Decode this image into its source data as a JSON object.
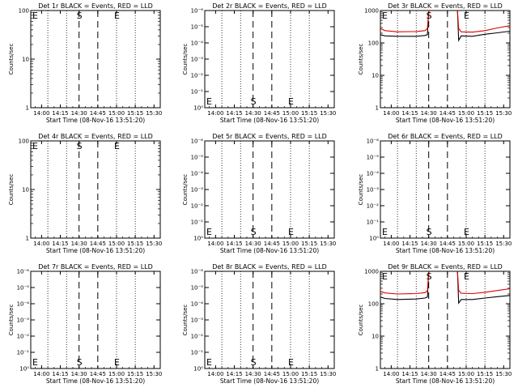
{
  "figure": {
    "colors": {
      "events": "#000000",
      "lld": "#dd0000",
      "background": "#ffffff"
    },
    "panels": [
      {
        "title": "Det 1r BLACK = Events, RED = LLD",
        "xlabel": "Start Time (08-Nov-16 13:51:20)",
        "ylabel": "Counts/sec",
        "xticks": [
          "14:00",
          "14:15",
          "14:30",
          "14:45",
          "15:00",
          "15:15",
          "15:30"
        ],
        "yticks": [
          "1",
          "10",
          "100"
        ],
        "markers": [
          "E",
          "S",
          "E"
        ]
      },
      {
        "title": "Det 2r BLACK = Events, RED = LLD",
        "xlabel": "Start Time (08-Nov-16 13:51:20)",
        "ylabel": "Counts/sec",
        "xticks": [
          "14:00",
          "14:15",
          "14:30",
          "14:45",
          "15:00",
          "15:15",
          "15:30"
        ],
        "yticks": [
          "10⁰",
          "10⁻¹",
          "10⁻²",
          "10⁻³",
          "10⁻⁴",
          "10⁻⁵",
          "10⁻⁶"
        ],
        "markers": [
          "E",
          "S",
          "E"
        ]
      },
      {
        "title": "Det 3r BLACK = Events, RED = LLD",
        "xlabel": "Start Time (08-Nov-16 13:51:20)",
        "ylabel": "Counts/sec",
        "xticks": [
          "14:00",
          "14:15",
          "14:30",
          "14:45",
          "15:00",
          "15:15",
          "15:30"
        ],
        "yticks": [
          "1",
          "10",
          "100",
          "1000"
        ],
        "markers": [
          "E",
          "S",
          "E"
        ]
      },
      {
        "title": "Det 4r BLACK = Events, RED = LLD",
        "xlabel": "Start Time (08-Nov-16 13:51:20)",
        "ylabel": "Counts/sec",
        "xticks": [
          "14:00",
          "14:15",
          "14:30",
          "14:45",
          "15:00",
          "15:15",
          "15:30"
        ],
        "yticks": [
          "1",
          "10",
          "100"
        ],
        "markers": [
          "E",
          "S",
          "E"
        ]
      },
      {
        "title": "Det 5r BLACK = Events, RED = LLD",
        "xlabel": "Start Time (08-Nov-16 13:51:20)",
        "ylabel": "Counts/sec",
        "xticks": [
          "14:00",
          "14:15",
          "14:30",
          "14:45",
          "15:00",
          "15:15",
          "15:30"
        ],
        "yticks": [
          "10⁰",
          "10⁻¹",
          "10⁻²",
          "10⁻³",
          "10⁻⁴",
          "10⁻⁵",
          "10⁻⁶"
        ],
        "markers": [
          "E",
          "S",
          "E"
        ]
      },
      {
        "title": "Det 6r BLACK = Events, RED = LLD",
        "xlabel": "Start Time (08-Nov-16 13:51:20)",
        "ylabel": "Counts/sec",
        "xticks": [
          "14:00",
          "14:15",
          "14:30",
          "14:45",
          "15:00",
          "15:15",
          "15:30"
        ],
        "yticks": [
          "10⁰",
          "10⁻¹",
          "10⁻²",
          "10⁻³",
          "10⁻⁴",
          "10⁻⁵",
          "10⁻⁶"
        ],
        "markers": [
          "E",
          "S",
          "E"
        ]
      },
      {
        "title": "Det 7r BLACK = Events, RED = LLD",
        "xlabel": "Start Time (08-Nov-16 13:51:20)",
        "ylabel": "Counts/sec",
        "xticks": [
          "14:00",
          "14:15",
          "14:30",
          "14:45",
          "15:00",
          "15:15",
          "15:30"
        ],
        "yticks": [
          "10⁰",
          "10⁻¹",
          "10⁻²",
          "10⁻³",
          "10⁻⁴",
          "10⁻⁵",
          "10⁻⁶"
        ],
        "markers": [
          "E",
          "S",
          "E"
        ]
      },
      {
        "title": "Det 8r BLACK = Events, RED = LLD",
        "xlabel": "Start Time (08-Nov-16 13:51:20)",
        "ylabel": "Counts/sec",
        "xticks": [
          "14:00",
          "14:15",
          "14:30",
          "14:45",
          "15:00",
          "15:15",
          "15:30"
        ],
        "yticks": [
          "10⁰",
          "10⁻¹",
          "10⁻²",
          "10⁻³",
          "10⁻⁴",
          "10⁻⁵",
          "10⁻⁶"
        ],
        "markers": [
          "E",
          "S",
          "E"
        ]
      },
      {
        "title": "Det 9r BLACK = Events, RED = LLD",
        "xlabel": "Start Time (08-Nov-16 13:51:20)",
        "ylabel": "Counts/sec",
        "xticks": [
          "14:00",
          "14:15",
          "14:30",
          "14:45",
          "15:00",
          "15:15",
          "15:30"
        ],
        "yticks": [
          "1",
          "10",
          "100",
          "1000"
        ],
        "markers": [
          "E",
          "S",
          "E"
        ]
      }
    ]
  },
  "chart_data": [
    {
      "type": "line",
      "title": "Det 1r BLACK = Events, RED = LLD",
      "xlabel": "Start Time (08-Nov-16 13:51:20)",
      "ylabel": "Counts/sec",
      "yscale": "log",
      "xlim": [
        "13:51:20",
        "15:35"
      ],
      "ylim": [
        1,
        100
      ],
      "dotted_x": [
        "14:05",
        "14:20",
        "15:00",
        "15:15"
      ],
      "dashed_x": [
        "14:30",
        "14:45"
      ],
      "markers": [
        {
          "label": "E",
          "x": "13:52"
        },
        {
          "label": "S",
          "x": "14:30"
        },
        {
          "label": "E",
          "x": "15:00"
        }
      ],
      "series": []
    },
    {
      "type": "line",
      "title": "Det 2r BLACK = Events, RED = LLD",
      "xlabel": "Start Time (08-Nov-16 13:51:20)",
      "ylabel": "Counts/sec",
      "yscale": "log",
      "xlim": [
        "13:51:20",
        "15:35"
      ],
      "ylim": [
        1,
        1000000
      ],
      "dotted_x": [
        "14:05",
        "14:20",
        "15:00",
        "15:15"
      ],
      "dashed_x": [
        "14:30",
        "14:45"
      ],
      "markers": [
        {
          "label": "E",
          "x": "13:52"
        },
        {
          "label": "S",
          "x": "14:30"
        },
        {
          "label": "E",
          "x": "15:00"
        }
      ],
      "series": []
    },
    {
      "type": "line",
      "title": "Det 3r BLACK = Events, RED = LLD",
      "xlabel": "Start Time (08-Nov-16 13:51:20)",
      "ylabel": "Counts/sec",
      "yscale": "log",
      "xlim": [
        "13:51:20",
        "15:35"
      ],
      "ylim": [
        1,
        1000
      ],
      "dotted_x": [
        "14:05",
        "14:20",
        "15:00",
        "15:15"
      ],
      "dashed_x": [
        "14:30",
        "14:45"
      ],
      "markers": [
        {
          "label": "E",
          "x": "13:52"
        },
        {
          "label": "S",
          "x": "14:30"
        },
        {
          "label": "E",
          "x": "15:00"
        }
      ],
      "series": [
        {
          "color": "#000000",
          "segments": [
            [
              [
                "13:51:20",
                180
              ],
              [
                "13:55",
                165
              ],
              [
                "14:05",
                160
              ],
              [
                "14:20",
                160
              ],
              [
                "14:27",
                170
              ],
              [
                "14:29",
                180
              ],
              [
                "14:30",
                1000
              ]
            ],
            [
              [
                "14:53",
                1000
              ],
              [
                "14:54",
                120
              ],
              [
                "14:56",
                165
              ],
              [
                "15:05",
                160
              ],
              [
                "15:15",
                185
              ],
              [
                "15:25",
                205
              ],
              [
                "15:35",
                230
              ]
            ]
          ]
        },
        {
          "color": "#dd0000",
          "segments": [
            [
              [
                "13:51:20",
                280
              ],
              [
                "13:55",
                240
              ],
              [
                "14:05",
                220
              ],
              [
                "14:20",
                225
              ],
              [
                "14:27",
                240
              ],
              [
                "14:29",
                280
              ],
              [
                "14:30",
                1000
              ]
            ],
            [
              [
                "14:53",
                1000
              ],
              [
                "14:54",
                280
              ],
              [
                "14:56",
                220
              ],
              [
                "15:05",
                215
              ],
              [
                "15:15",
                240
              ],
              [
                "15:25",
                290
              ],
              [
                "15:35",
                340
              ]
            ]
          ]
        }
      ]
    },
    {
      "type": "line",
      "title": "Det 4r BLACK = Events, RED = LLD",
      "xlabel": "Start Time (08-Nov-16 13:51:20)",
      "ylabel": "Counts/sec",
      "yscale": "log",
      "xlim": [
        "13:51:20",
        "15:35"
      ],
      "ylim": [
        1,
        100
      ],
      "dotted_x": [
        "14:05",
        "14:20",
        "15:00",
        "15:15"
      ],
      "dashed_x": [
        "14:30",
        "14:45"
      ],
      "markers": [
        {
          "label": "E",
          "x": "13:52"
        },
        {
          "label": "S",
          "x": "14:30"
        },
        {
          "label": "E",
          "x": "15:00"
        }
      ],
      "series": []
    },
    {
      "type": "line",
      "title": "Det 5r BLACK = Events, RED = LLD",
      "xlabel": "Start Time (08-Nov-16 13:51:20)",
      "ylabel": "Counts/sec",
      "yscale": "log",
      "xlim": [
        "13:51:20",
        "15:35"
      ],
      "ylim": [
        1,
        1000000
      ],
      "dotted_x": [
        "14:05",
        "14:20",
        "15:00",
        "15:15"
      ],
      "dashed_x": [
        "14:30",
        "14:45"
      ],
      "markers": [
        {
          "label": "E",
          "x": "13:52"
        },
        {
          "label": "S",
          "x": "14:30"
        },
        {
          "label": "E",
          "x": "15:00"
        }
      ],
      "series": []
    },
    {
      "type": "line",
      "title": "Det 6r BLACK = Events, RED = LLD",
      "xlabel": "Start Time (08-Nov-16 13:51:20)",
      "ylabel": "Counts/sec",
      "yscale": "log",
      "xlim": [
        "13:51:20",
        "15:35"
      ],
      "ylim": [
        1,
        1000000
      ],
      "dotted_x": [
        "14:05",
        "14:20",
        "15:00",
        "15:15"
      ],
      "dashed_x": [
        "14:30",
        "14:45"
      ],
      "markers": [
        {
          "label": "E",
          "x": "13:52"
        },
        {
          "label": "S",
          "x": "14:30"
        },
        {
          "label": "E",
          "x": "15:00"
        }
      ],
      "series": []
    },
    {
      "type": "line",
      "title": "Det 7r BLACK = Events, RED = LLD",
      "xlabel": "Start Time (08-Nov-16 13:51:20)",
      "ylabel": "Counts/sec",
      "yscale": "log",
      "xlim": [
        "13:51:20",
        "15:35"
      ],
      "ylim": [
        1,
        1000000
      ],
      "dotted_x": [
        "14:05",
        "14:20",
        "15:00",
        "15:15"
      ],
      "dashed_x": [
        "14:30",
        "14:45"
      ],
      "markers": [
        {
          "label": "E",
          "x": "13:52"
        },
        {
          "label": "S",
          "x": "14:30"
        },
        {
          "label": "E",
          "x": "15:00"
        }
      ],
      "series": []
    },
    {
      "type": "line",
      "title": "Det 8r BLACK = Events, RED = LLD",
      "xlabel": "Start Time (08-Nov-16 13:51:20)",
      "ylabel": "Counts/sec",
      "yscale": "log",
      "xlim": [
        "13:51:20",
        "15:35"
      ],
      "ylim": [
        1,
        1000000
      ],
      "dotted_x": [
        "14:05",
        "14:20",
        "15:00",
        "15:15"
      ],
      "dashed_x": [
        "14:30",
        "14:45"
      ],
      "markers": [
        {
          "label": "E",
          "x": "13:52"
        },
        {
          "label": "S",
          "x": "14:30"
        },
        {
          "label": "E",
          "x": "15:00"
        }
      ],
      "series": []
    },
    {
      "type": "line",
      "title": "Det 9r BLACK = Events, RED = LLD",
      "xlabel": "Start Time (08-Nov-16 13:51:20)",
      "ylabel": "Counts/sec",
      "yscale": "log",
      "xlim": [
        "13:51:20",
        "15:35"
      ],
      "ylim": [
        1,
        1000
      ],
      "dotted_x": [
        "14:05",
        "14:20",
        "15:00",
        "15:15"
      ],
      "dashed_x": [
        "14:30",
        "14:45"
      ],
      "markers": [
        {
          "label": "E",
          "x": "13:52"
        },
        {
          "label": "S",
          "x": "14:30"
        },
        {
          "label": "E",
          "x": "15:00"
        }
      ],
      "series": [
        {
          "color": "#000000",
          "segments": [
            [
              [
                "13:51:20",
                160
              ],
              [
                "13:55",
                145
              ],
              [
                "14:05",
                135
              ],
              [
                "14:20",
                140
              ],
              [
                "14:27",
                150
              ],
              [
                "14:29",
                160
              ],
              [
                "14:30",
                1000
              ]
            ],
            [
              [
                "14:53",
                1000
              ],
              [
                "14:54",
                105
              ],
              [
                "14:56",
                135
              ],
              [
                "15:05",
                135
              ],
              [
                "15:15",
                150
              ],
              [
                "15:25",
                165
              ],
              [
                "15:35",
                180
              ]
            ]
          ]
        },
        {
          "color": "#dd0000",
          "segments": [
            [
              [
                "13:51:20",
                240
              ],
              [
                "13:55",
                215
              ],
              [
                "14:05",
                200
              ],
              [
                "14:20",
                205
              ],
              [
                "14:27",
                220
              ],
              [
                "14:29",
                250
              ],
              [
                "14:30",
                1000
              ]
            ],
            [
              [
                "14:53",
                1000
              ],
              [
                "14:54",
                260
              ],
              [
                "14:56",
                210
              ],
              [
                "15:05",
                205
              ],
              [
                "15:15",
                225
              ],
              [
                "15:25",
                255
              ],
              [
                "15:35",
                290
              ]
            ]
          ]
        }
      ]
    }
  ]
}
